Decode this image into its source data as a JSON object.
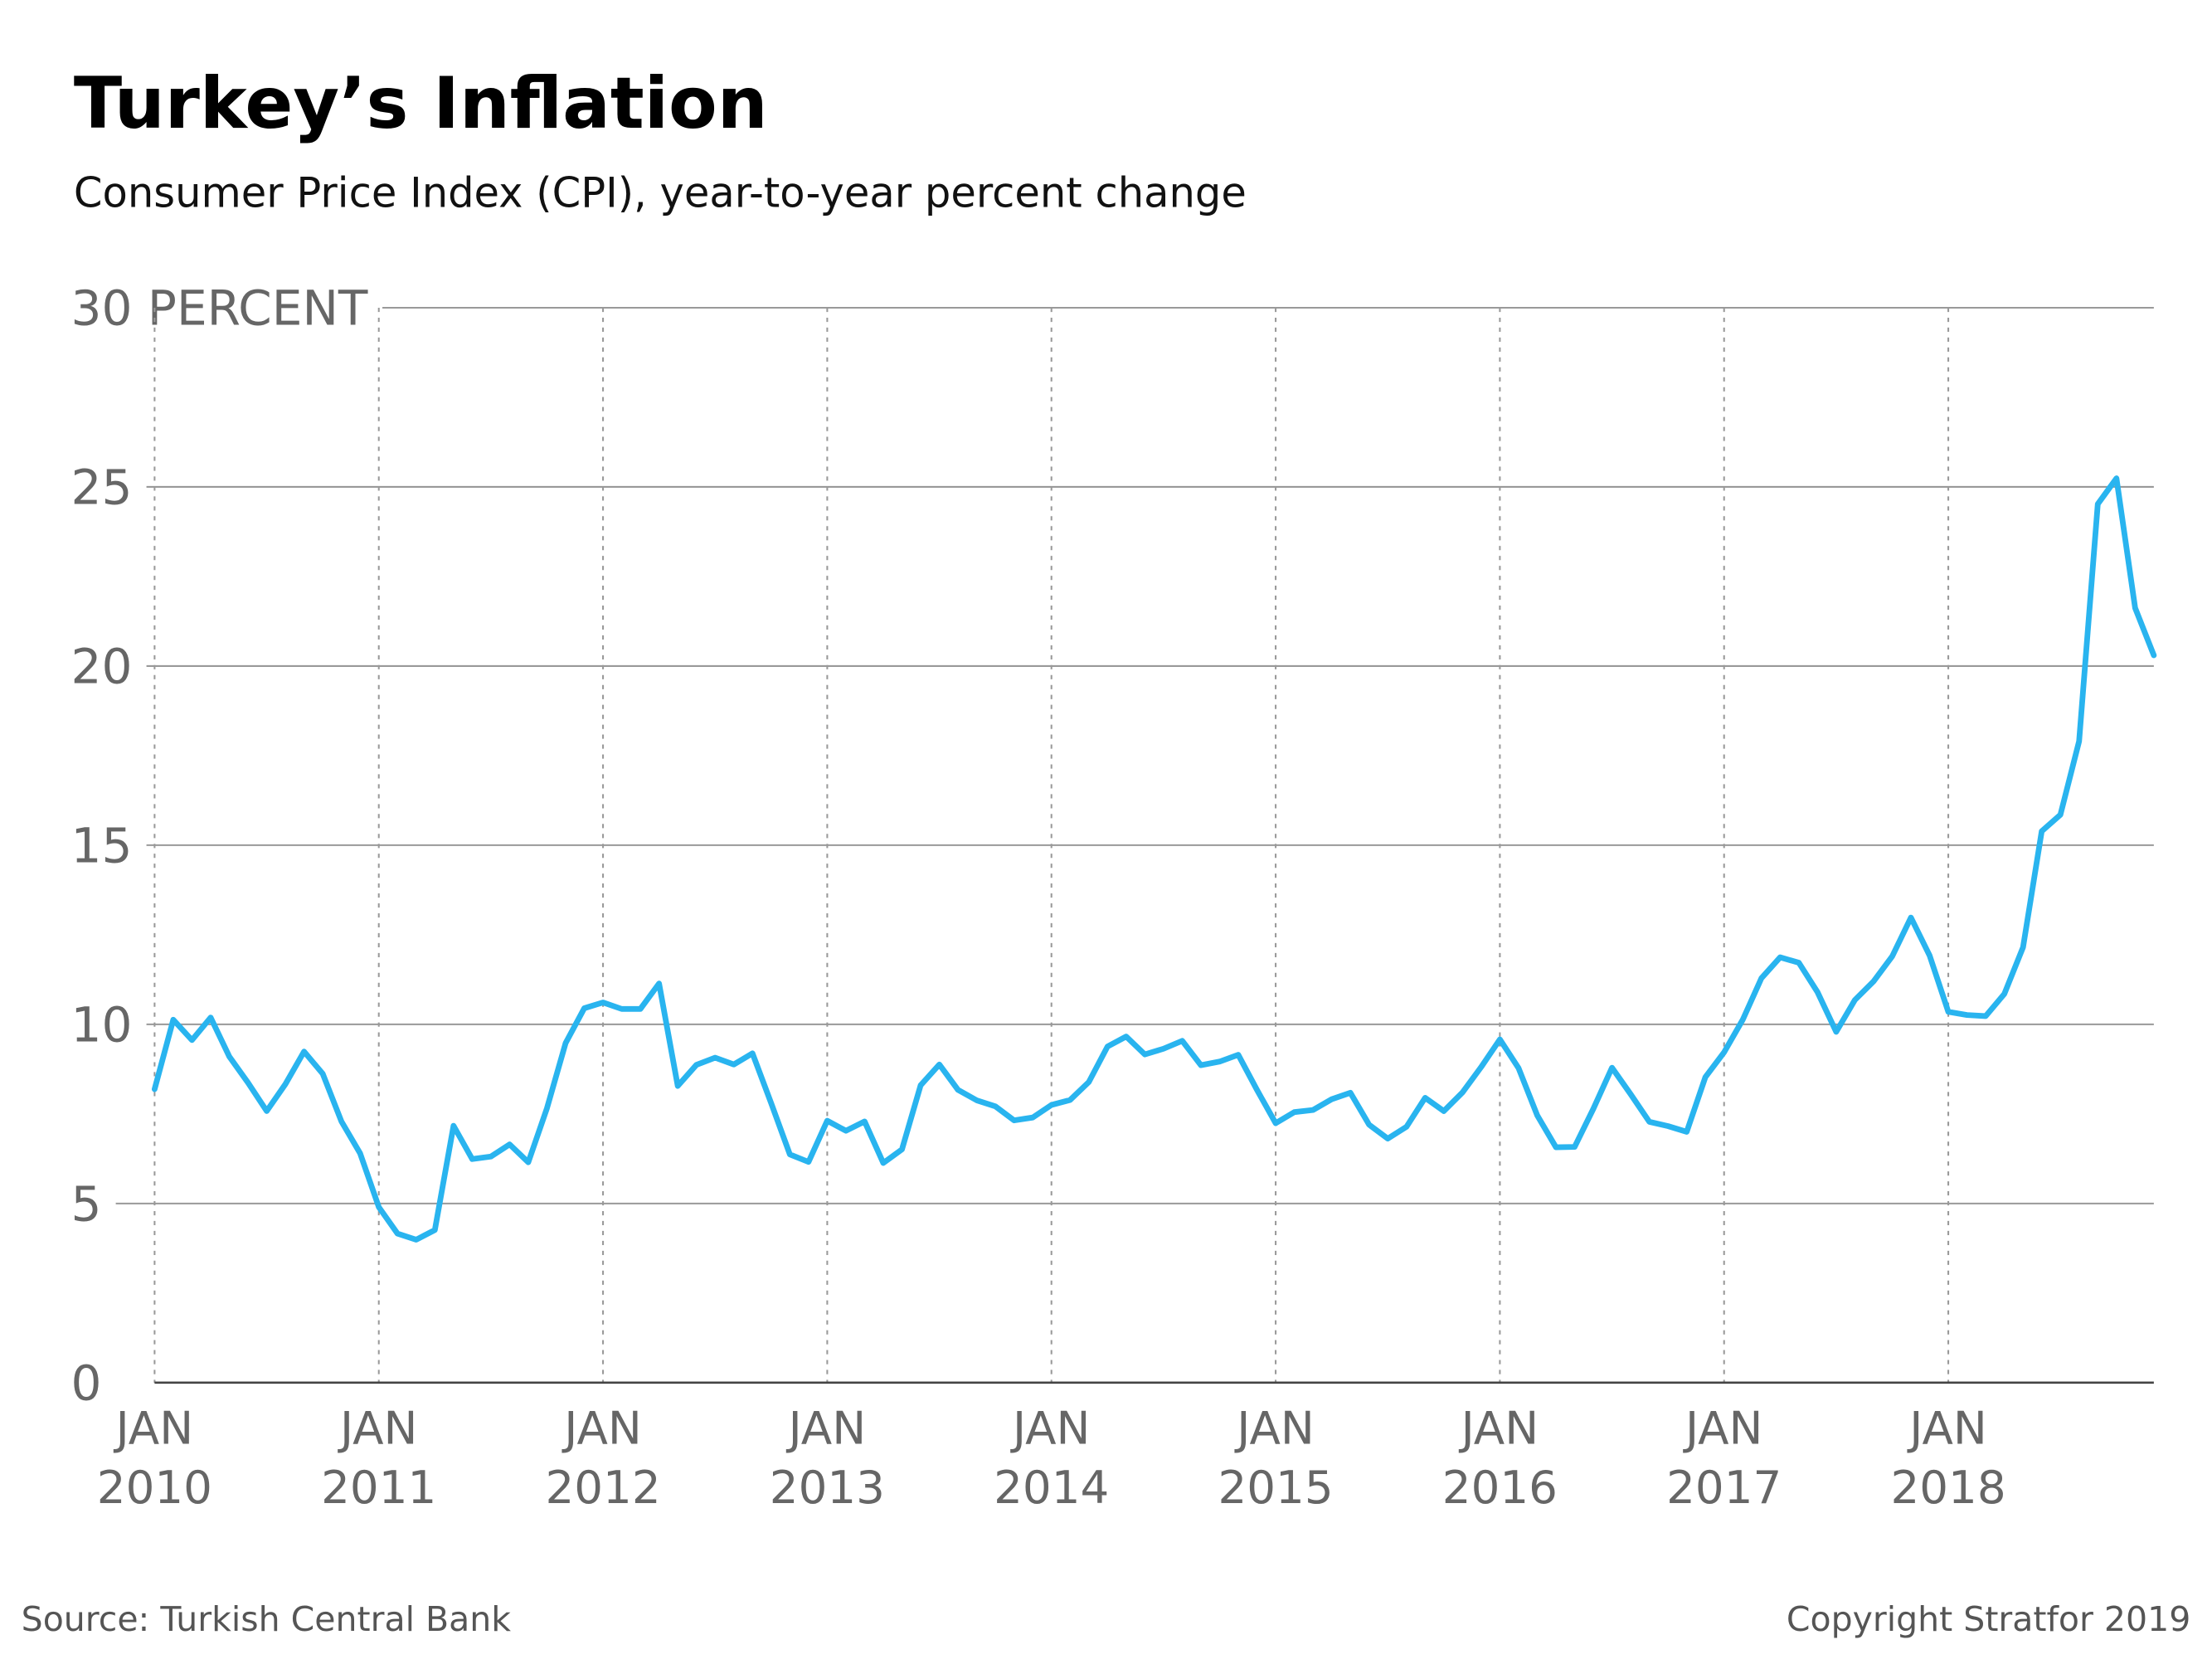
{
  "chart_data": {
    "type": "line",
    "title": "Turkey’s Inflation",
    "subtitle": "Consumer Price Index (CPI), year-to-year percent change",
    "source": "Source: Turkish Central Bank",
    "copyright": "Copyright Stratfor 2019",
    "x": [
      "2010-01",
      "2010-02",
      "2010-03",
      "2010-04",
      "2010-05",
      "2010-06",
      "2010-07",
      "2010-08",
      "2010-09",
      "2010-10",
      "2010-11",
      "2010-12",
      "2011-01",
      "2011-02",
      "2011-03",
      "2011-04",
      "2011-05",
      "2011-06",
      "2011-07",
      "2011-08",
      "2011-09",
      "2011-10",
      "2011-11",
      "2011-12",
      "2012-01",
      "2012-02",
      "2012-03",
      "2012-04",
      "2012-05",
      "2012-06",
      "2012-07",
      "2012-08",
      "2012-09",
      "2012-10",
      "2012-11",
      "2012-12",
      "2013-01",
      "2013-02",
      "2013-03",
      "2013-04",
      "2013-05",
      "2013-06",
      "2013-07",
      "2013-08",
      "2013-09",
      "2013-10",
      "2013-11",
      "2013-12",
      "2014-01",
      "2014-02",
      "2014-03",
      "2014-04",
      "2014-05",
      "2014-06",
      "2014-07",
      "2014-08",
      "2014-09",
      "2014-10",
      "2014-11",
      "2014-12",
      "2015-01",
      "2015-02",
      "2015-03",
      "2015-04",
      "2015-05",
      "2015-06",
      "2015-07",
      "2015-08",
      "2015-09",
      "2015-10",
      "2015-11",
      "2015-12",
      "2016-01",
      "2016-02",
      "2016-03",
      "2016-04",
      "2016-05",
      "2016-06",
      "2016-07",
      "2016-08",
      "2016-09",
      "2016-10",
      "2016-11",
      "2016-12",
      "2017-01",
      "2017-02",
      "2017-03",
      "2017-04",
      "2017-05",
      "2017-06",
      "2017-07",
      "2017-08",
      "2017-09",
      "2017-10",
      "2017-11",
      "2017-12",
      "2018-01",
      "2018-02",
      "2018-03",
      "2018-04",
      "2018-05",
      "2018-06",
      "2018-07",
      "2018-08",
      "2018-09",
      "2018-10",
      "2018-11",
      "2018-12"
    ],
    "values": [
      8.19,
      10.13,
      9.56,
      10.19,
      9.1,
      8.37,
      7.58,
      8.33,
      9.24,
      8.62,
      7.29,
      6.4,
      4.9,
      4.16,
      3.99,
      4.26,
      7.17,
      6.24,
      6.31,
      6.65,
      6.15,
      7.66,
      9.48,
      10.45,
      10.61,
      10.43,
      10.43,
      11.14,
      8.28,
      8.87,
      9.07,
      8.88,
      9.19,
      7.8,
      6.37,
      6.16,
      7.31,
      7.03,
      7.29,
      6.13,
      6.51,
      8.3,
      8.88,
      8.17,
      7.88,
      7.71,
      7.32,
      7.4,
      7.75,
      7.89,
      8.39,
      9.38,
      9.66,
      9.16,
      9.32,
      9.54,
      8.86,
      8.96,
      9.15,
      8.17,
      7.24,
      7.55,
      7.61,
      7.91,
      8.09,
      7.2,
      6.81,
      7.14,
      7.95,
      7.58,
      8.1,
      8.81,
      9.58,
      8.78,
      7.46,
      6.57,
      6.58,
      7.64,
      8.79,
      8.05,
      7.28,
      7.16,
      7.0,
      8.53,
      9.22,
      10.13,
      11.29,
      11.87,
      11.72,
      10.9,
      9.79,
      10.68,
      11.2,
      11.9,
      12.98,
      11.92,
      10.35,
      10.26,
      10.23,
      10.85,
      12.15,
      15.39,
      15.85,
      17.9,
      24.52,
      25.24,
      21.62,
      20.3
    ],
    "color": "#29b4ef",
    "xlim": [
      "2010-01",
      "2018-12"
    ],
    "xticks": [
      {
        "value": "2010-01",
        "label": "JAN 2010"
      },
      {
        "value": "2011-01",
        "label": "JAN 2011"
      },
      {
        "value": "2012-01",
        "label": "JAN 2012"
      },
      {
        "value": "2013-01",
        "label": "JAN 2013"
      },
      {
        "value": "2014-01",
        "label": "JAN 2014"
      },
      {
        "value": "2015-01",
        "label": "JAN 2015"
      },
      {
        "value": "2016-01",
        "label": "JAN 2016"
      },
      {
        "value": "2017-01",
        "label": "JAN 2017"
      },
      {
        "value": "2018-01",
        "label": "JAN 2018"
      }
    ],
    "ylim": [
      0,
      30
    ],
    "yticks": [
      0,
      5,
      10,
      15,
      20,
      25,
      {
        "value": 30,
        "label": "30 PERCENT"
      }
    ],
    "grid": true
  }
}
